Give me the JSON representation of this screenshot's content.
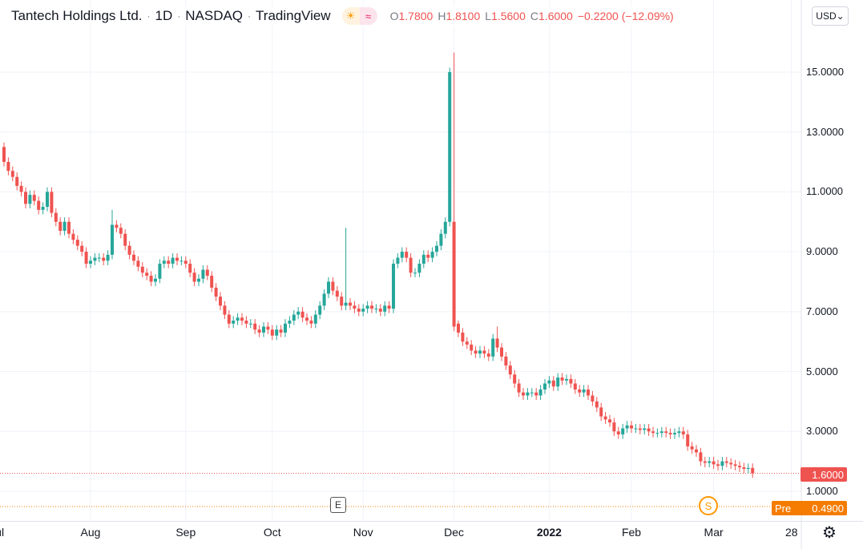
{
  "header": {
    "symbol_name": "Tantech Holdings Ltd.",
    "interval": "1D",
    "exchange": "NASDAQ",
    "source": "TradingView",
    "icons": [
      "sun-icon",
      "wave-icon"
    ],
    "ohlc": {
      "o_label": "O",
      "o": "1.7800",
      "h_label": "H",
      "h": "1.8100",
      "l_label": "L",
      "l": "1.5600",
      "c_label": "C",
      "c": "1.6000",
      "change": "−0.2200 (−12.09%)"
    }
  },
  "currency_button": "USD",
  "price_axis": {
    "labels": [
      "15.0000",
      "13.0000",
      "11.0000",
      "9.0000",
      "7.0000",
      "5.0000",
      "3.0000",
      "1.0000"
    ],
    "values": [
      15,
      13,
      11,
      9,
      7,
      5,
      3,
      1
    ]
  },
  "time_axis": {
    "labels": [
      {
        "text": "ul",
        "bar": -1
      },
      {
        "text": "Aug",
        "bar": 20
      },
      {
        "text": "Sep",
        "bar": 42
      },
      {
        "text": "Oct",
        "bar": 62
      },
      {
        "text": "Nov",
        "bar": 83
      },
      {
        "text": "Dec",
        "bar": 104
      },
      {
        "text": "2022",
        "bar": 126
      },
      {
        "text": "Feb",
        "bar": 145
      },
      {
        "text": "Mar",
        "bar": 164
      },
      {
        "text": "28",
        "bar": 182
      }
    ]
  },
  "last_price": {
    "value": 1.6,
    "label": "1.6000",
    "color": "#ef5350"
  },
  "premarket": {
    "label": "Pre",
    "value": 0.49,
    "value_label": "0.4900",
    "color": "#f57c00"
  },
  "markers": {
    "earnings": "E",
    "split": "S"
  },
  "colors": {
    "up": "#26a69a",
    "down": "#ef5350",
    "grid": "#f0f3fa"
  },
  "chart_data": {
    "type": "candlestick",
    "ylim": [
      0.3,
      16.2
    ],
    "close": [
      12.0,
      11.7,
      11.5,
      11.2,
      11.0,
      10.6,
      10.9,
      10.7,
      10.4,
      10.5,
      11.0,
      10.3,
      10.0,
      9.7,
      10.0,
      9.6,
      9.4,
      9.2,
      9.0,
      8.6,
      8.7,
      8.8,
      8.8,
      8.7,
      8.9,
      9.9,
      9.8,
      9.6,
      9.2,
      8.9,
      8.7,
      8.5,
      8.3,
      8.2,
      8.0,
      8.1,
      8.6,
      8.7,
      8.6,
      8.8,
      8.7,
      8.7,
      8.6,
      8.3,
      8.0,
      8.1,
      8.4,
      8.2,
      7.8,
      7.5,
      7.2,
      6.9,
      6.6,
      6.7,
      6.8,
      6.7,
      6.6,
      6.6,
      6.4,
      6.3,
      6.5,
      6.4,
      6.2,
      6.4,
      6.3,
      6.6,
      6.7,
      6.9,
      7.0,
      6.8,
      6.7,
      6.6,
      6.9,
      7.2,
      7.6,
      8.0,
      7.7,
      7.5,
      7.2,
      7.3,
      7.2,
      7.1,
      7.0,
      7.1,
      7.2,
      7.1,
      7.1,
      7.0,
      7.2,
      7.1,
      8.6,
      8.8,
      9.0,
      8.8,
      8.3,
      8.3,
      8.6,
      8.9,
      8.8,
      9.0,
      9.2,
      9.6,
      10.0,
      15.0,
      6.5,
      6.3,
      6.0,
      5.9,
      5.7,
      5.6,
      5.7,
      5.6,
      5.5,
      6.1,
      5.8,
      5.5,
      5.2,
      4.9,
      4.6,
      4.3,
      4.2,
      4.3,
      4.3,
      4.2,
      4.4,
      4.6,
      4.7,
      4.5,
      4.8,
      4.7,
      4.75,
      4.6,
      4.4,
      4.3,
      4.4,
      4.2,
      4.0,
      3.8,
      3.5,
      3.4,
      3.3,
      3.0,
      2.9,
      3.1,
      3.2,
      3.1,
      3.1,
      3.05,
      3.1,
      3.0,
      2.95,
      2.95,
      3.0,
      2.95,
      2.9,
      2.95,
      3.0,
      2.9,
      2.5,
      2.4,
      2.3,
      2.0,
      1.95,
      2.0,
      1.9,
      1.85,
      2.0,
      1.95,
      1.9,
      1.85,
      1.8,
      1.75,
      1.78,
      1.6
    ],
    "first_open": 12.5,
    "open_overrides": [
      [
        104,
        10.0
      ],
      [
        105,
        6.6
      ],
      [
        174,
        1.78
      ]
    ],
    "high_overrides": [
      [
        25,
        10.4
      ],
      [
        79,
        9.8
      ],
      [
        104,
        15.65
      ],
      [
        105,
        6.7
      ],
      [
        114,
        6.5
      ],
      [
        174,
        1.81
      ]
    ],
    "low_overrides": [
      [
        174,
        1.56
      ]
    ]
  }
}
